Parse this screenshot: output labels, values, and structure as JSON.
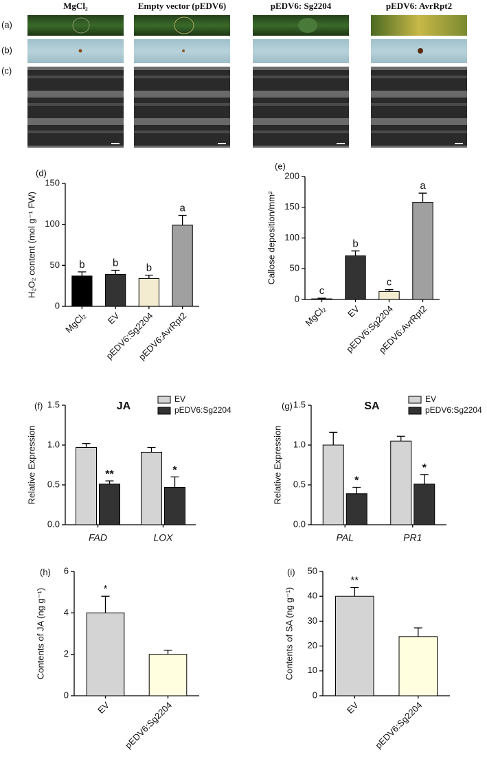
{
  "header": {
    "columns": [
      "MgCl₂",
      "Empty vector (pEDV6)",
      "pEDV6: Sg2204",
      "pEDV6: AvrRpt2"
    ]
  },
  "image_rows": [
    "(a)",
    "(b)",
    "(c)"
  ],
  "chart_data": [
    {
      "type": "bar",
      "label": "(d)",
      "ylabel": "H₂O₂ content (mol g⁻¹ FW)",
      "categories": [
        "MgCl₂",
        "EV",
        "pEDV6:Sg2204",
        "pEDV6:AvrRpt2"
      ],
      "values": [
        37,
        39,
        34,
        99
      ],
      "errors": [
        5,
        5,
        4,
        12
      ],
      "colors": [
        "#000000",
        "#333333",
        "#f3ecd0",
        "#a0a0a0"
      ],
      "significance": [
        "b",
        "b",
        "b",
        "a"
      ],
      "ylim": [
        0,
        150
      ],
      "yticks": [
        0,
        50,
        100,
        150
      ]
    },
    {
      "type": "bar",
      "label": "(e)",
      "ylabel": "Callose deposition/mm²",
      "categories": [
        "MgCl₂",
        "EV",
        "pEDV6:Sg2204",
        "pEDV6:AvrRpt2"
      ],
      "values": [
        1,
        71,
        13,
        158
      ],
      "errors": [
        1,
        8,
        3,
        15
      ],
      "colors": [
        "#000000",
        "#333333",
        "#f3ecd0",
        "#a0a0a0"
      ],
      "significance": [
        "c",
        "b",
        "c",
        "a"
      ],
      "ylim": [
        0,
        200
      ],
      "yticks": [
        0,
        50,
        100,
        150,
        200
      ]
    },
    {
      "type": "bar",
      "label": "(f)",
      "title": "JA",
      "ylabel": "Relative Expression",
      "categories": [
        "FAD",
        "LOX"
      ],
      "series": [
        {
          "name": "EV",
          "color": "#d4d4d4",
          "values": [
            0.97,
            0.91
          ],
          "errors": [
            0.05,
            0.06
          ]
        },
        {
          "name": "pEDV6:Sg2204",
          "color": "#333333",
          "values": [
            0.51,
            0.47
          ],
          "errors": [
            0.04,
            0.13
          ],
          "significance": [
            "**",
            "*"
          ]
        }
      ],
      "ylim": [
        0,
        1.5
      ],
      "yticks": [
        {
          "value": 0,
          "label": "0.0"
        },
        0.5,
        {
          "value": 1,
          "label": "1.0"
        },
        1.5
      ]
    },
    {
      "type": "bar",
      "label": "(g)",
      "title": "SA",
      "ylabel": "Relative Expression",
      "categories": [
        "PAL",
        "PR1"
      ],
      "series": [
        {
          "name": "EV",
          "color": "#d4d4d4",
          "values": [
            1.0,
            1.05
          ],
          "errors": [
            0.16,
            0.06
          ]
        },
        {
          "name": "pEDV6:Sg2204",
          "color": "#333333",
          "values": [
            0.39,
            0.51
          ],
          "errors": [
            0.08,
            0.12
          ],
          "significance": [
            "*",
            "*"
          ]
        }
      ],
      "ylim": [
        0,
        1.5
      ],
      "yticks": [
        {
          "value": 0,
          "label": "0.0"
        },
        0.5,
        {
          "value": 1,
          "label": "1.0"
        },
        1.5
      ]
    },
    {
      "type": "bar",
      "label": "(h)",
      "ylabel": "Contents of JA (ng g⁻¹)",
      "categories": [
        "EV",
        "pEDV6:Sg2204"
      ],
      "values": [
        4.0,
        2.0
      ],
      "errors": [
        0.8,
        0.2
      ],
      "colors": [
        "#d4d4d4",
        "#ffffe0"
      ],
      "significance": [
        "*",
        null
      ],
      "ylim": [
        0,
        6
      ],
      "yticks": [
        0,
        2,
        4,
        6
      ]
    },
    {
      "type": "bar",
      "label": "(i)",
      "ylabel": "Contents of SA (ng g⁻¹)",
      "categories": [
        "EV",
        "pEDV6:Sg2204"
      ],
      "values": [
        40,
        23.8
      ],
      "errors": [
        3.5,
        3.5
      ],
      "colors": [
        "#d4d4d4",
        "#ffffe0"
      ],
      "significance": [
        "**",
        null
      ],
      "ylim": [
        0,
        50
      ],
      "yticks": [
        0,
        10,
        20,
        30,
        40,
        50
      ]
    }
  ]
}
